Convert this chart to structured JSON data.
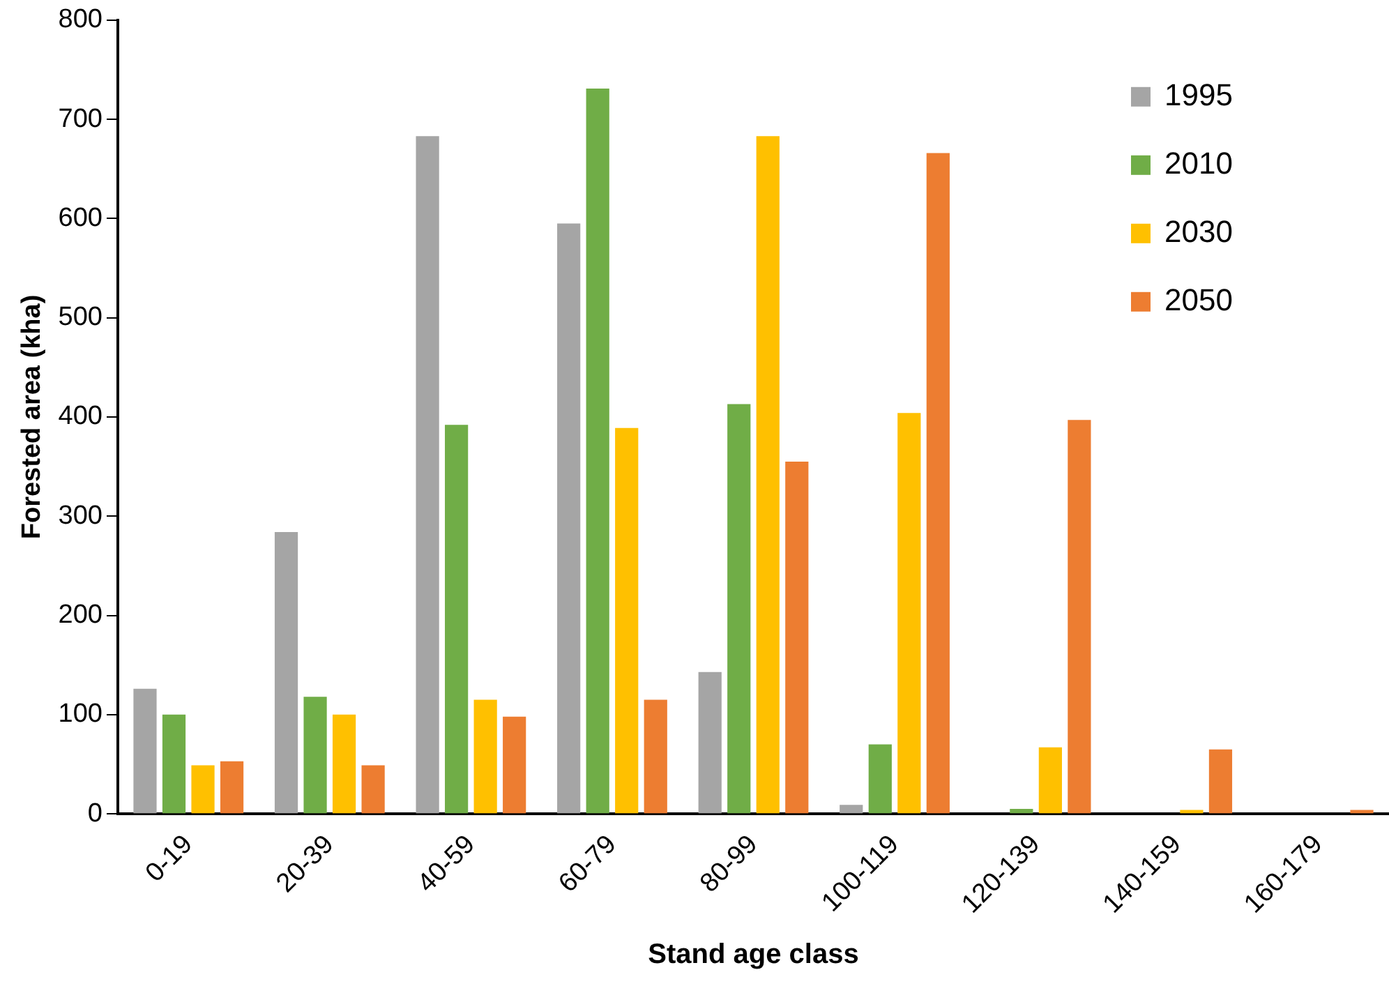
{
  "chart_data": {
    "type": "bar",
    "xlabel": "Stand age class",
    "ylabel": "Forested area (kha)",
    "categories": [
      "0-19",
      "20-39",
      "40-59",
      "60-79",
      "80-99",
      "100-119",
      "120-139",
      "140-159",
      "160-179"
    ],
    "series": [
      {
        "name": "1995",
        "color": "#a5a5a5",
        "values": [
          126,
          284,
          683,
          595,
          143,
          9,
          0,
          0,
          0
        ]
      },
      {
        "name": "2010",
        "color": "#70ad47",
        "values": [
          100,
          118,
          392,
          731,
          413,
          70,
          5,
          0,
          0
        ]
      },
      {
        "name": "2030",
        "color": "#ffc000",
        "values": [
          49,
          100,
          115,
          389,
          683,
          404,
          67,
          4,
          0
        ]
      },
      {
        "name": "2050",
        "color": "#ed7d31",
        "values": [
          53,
          49,
          98,
          115,
          355,
          666,
          397,
          65,
          4
        ]
      }
    ],
    "ylim": [
      0,
      800
    ],
    "yticks": [
      0,
      100,
      200,
      300,
      400,
      500,
      600,
      700,
      800
    ],
    "grid": false,
    "legend": "top right"
  }
}
